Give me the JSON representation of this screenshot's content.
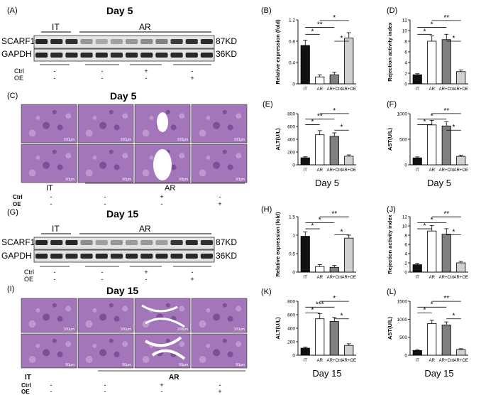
{
  "blot_top": {
    "panel": "(A)",
    "day": "Day 5",
    "group_it": "IT",
    "group_ar": "AR",
    "proteins": [
      "SCARF1",
      "GAPDH"
    ],
    "sizes": [
      "87KD",
      "36KD"
    ],
    "cond_rows": [
      "Ctrl",
      "OE"
    ],
    "cond_values": [
      [
        "-",
        "-",
        "+",
        "-"
      ],
      [
        "-",
        "-",
        "-",
        "+"
      ]
    ]
  },
  "blot_bottom": {
    "panel": "(G)",
    "day": "Day 15",
    "group_it": "IT",
    "group_ar": "AR",
    "proteins": [
      "SCARF1",
      "GAPDH"
    ],
    "sizes": [
      "87KD",
      "36KD"
    ],
    "cond_rows": [
      "Ctrl",
      "OE"
    ],
    "cond_values": [
      [
        "-",
        "-",
        "+",
        "-"
      ],
      [
        "-",
        "-",
        "-",
        "+"
      ]
    ]
  },
  "histo_top": {
    "panel": "(C)",
    "day": "Day 5",
    "group_it": "IT",
    "group_ar": "AR",
    "cond_rows": [
      "Ctrl",
      "OE"
    ],
    "cond_values": [
      [
        "-",
        "-",
        "+",
        "-"
      ],
      [
        "-",
        "-",
        "-",
        "+"
      ]
    ],
    "scale_top": "100μm",
    "scale_bottom": "50μm"
  },
  "histo_bottom": {
    "panel": "(I)",
    "day": "Day 15",
    "group_it": "IT",
    "group_ar": "AR",
    "cond_rows": [
      "Ctrl",
      "OE"
    ],
    "cond_values": [
      [
        "-",
        "-",
        "+",
        "-"
      ],
      [
        "-",
        "-",
        "-",
        "+"
      ]
    ],
    "scale_top": "100μm",
    "scale_bottom": "50μm"
  },
  "colors": {
    "it": "#111111",
    "ar": "#ffffff",
    "ar_ctrl": "#808080",
    "ar_oe": "#d0d0d0",
    "tissue": "#a276b8",
    "tissue_dark": "#6d3d8c"
  },
  "chart_data": [
    {
      "panel": "(B)",
      "type": "bar",
      "ylabel": "Relative expression (fold)",
      "xlabel": "",
      "categories": [
        "IT",
        "AR",
        "AR+Ctrl",
        "AR+OE"
      ],
      "values": [
        0.72,
        0.13,
        0.17,
        0.86
      ],
      "errors": [
        0.1,
        0.04,
        0.05,
        0.1
      ],
      "ylim": [
        0,
        1.2
      ],
      "yticks": [
        0.0,
        0.4,
        0.8,
        1.2
      ],
      "significance": [
        "*",
        "**",
        "*",
        "*"
      ],
      "footer": ""
    },
    {
      "panel": "(D)",
      "type": "bar",
      "ylabel": "Rejection activity index",
      "xlabel": "",
      "categories": [
        "IT",
        "AR",
        "AR+Ctrl",
        "AR+OE"
      ],
      "values": [
        1.7,
        8.0,
        8.3,
        2.3
      ],
      "errors": [
        0.2,
        1.0,
        1.0,
        0.3
      ],
      "ylim": [
        0,
        12
      ],
      "yticks": [
        0,
        2,
        4,
        6,
        8,
        10,
        12
      ],
      "significance": [
        "*",
        "*",
        "**",
        "*"
      ],
      "footer": ""
    },
    {
      "panel": "(E)",
      "type": "bar",
      "ylabel": "ALT(U/L)",
      "xlabel": "",
      "categories": [
        "IT",
        "AR",
        "AR+Ctrl",
        "AR+OE"
      ],
      "values": [
        110,
        470,
        445,
        135
      ],
      "errors": [
        15,
        65,
        55,
        20
      ],
      "ylim": [
        0,
        800
      ],
      "yticks": [
        0,
        200,
        400,
        600,
        800
      ],
      "significance": [
        "*",
        "**",
        "*",
        "*"
      ],
      "footer": "Day 5"
    },
    {
      "panel": "(F)",
      "type": "bar",
      "ylabel": "AST(U/L)",
      "xlabel": "",
      "categories": [
        "IT",
        "AR",
        "AR+Ctrl",
        "AR+OE"
      ],
      "values": [
        135,
        780,
        760,
        165
      ],
      "errors": [
        20,
        90,
        80,
        25
      ],
      "ylim": [
        0,
        1000
      ],
      "yticks": [
        0,
        500,
        1000
      ],
      "significance": [
        "*",
        "*",
        "**",
        "*"
      ],
      "footer": "Day 5"
    },
    {
      "panel": "(H)",
      "type": "bar",
      "ylabel": "Relative expression (fold)",
      "xlabel": "",
      "categories": [
        "IT",
        "AR",
        "AR+Ctrl",
        "AR+OE"
      ],
      "values": [
        0.97,
        0.15,
        0.13,
        0.92
      ],
      "errors": [
        0.12,
        0.05,
        0.05,
        0.08
      ],
      "ylim": [
        0,
        1.5
      ],
      "yticks": [
        0.0,
        0.5,
        1.0,
        1.5
      ],
      "significance": [
        "*",
        "*",
        "**",
        "*"
      ],
      "footer": ""
    },
    {
      "panel": "(J)",
      "type": "bar",
      "ylabel": "Rejection activity index",
      "xlabel": "",
      "categories": [
        "IT",
        "AR",
        "AR+Ctrl",
        "AR+OE"
      ],
      "values": [
        1.6,
        8.9,
        8.2,
        2.0
      ],
      "errors": [
        0.3,
        1.2,
        1.2,
        0.3
      ],
      "ylim": [
        0,
        12
      ],
      "yticks": [
        0,
        2,
        4,
        6,
        8,
        10,
        12
      ],
      "significance": [
        "*",
        "*",
        "**",
        "*"
      ],
      "footer": ""
    },
    {
      "panel": "(K)",
      "type": "bar",
      "ylabel": "ALT(U/L)",
      "xlabel": "",
      "categories": [
        "IT",
        "AR",
        "AR+Ctrl",
        "AR+OE"
      ],
      "values": [
        105,
        540,
        500,
        145
      ],
      "errors": [
        15,
        75,
        60,
        25
      ],
      "ylim": [
        0,
        800
      ],
      "yticks": [
        0,
        200,
        400,
        600,
        800
      ],
      "significance": [
        "*",
        "***",
        "*",
        "*"
      ],
      "footer": "Day 15"
    },
    {
      "panel": "(L)",
      "type": "bar",
      "ylabel": "AST(U/L)",
      "xlabel": "",
      "categories": [
        "IT",
        "AR",
        "AR+Ctrl",
        "AR+OE"
      ],
      "values": [
        130,
        880,
        840,
        160
      ],
      "errors": [
        20,
        90,
        85,
        20
      ],
      "ylim": [
        0,
        1500
      ],
      "yticks": [
        0,
        500,
        1000,
        1500
      ],
      "significance": [
        "*",
        "*",
        "**",
        "*"
      ],
      "footer": "Day 15"
    }
  ]
}
